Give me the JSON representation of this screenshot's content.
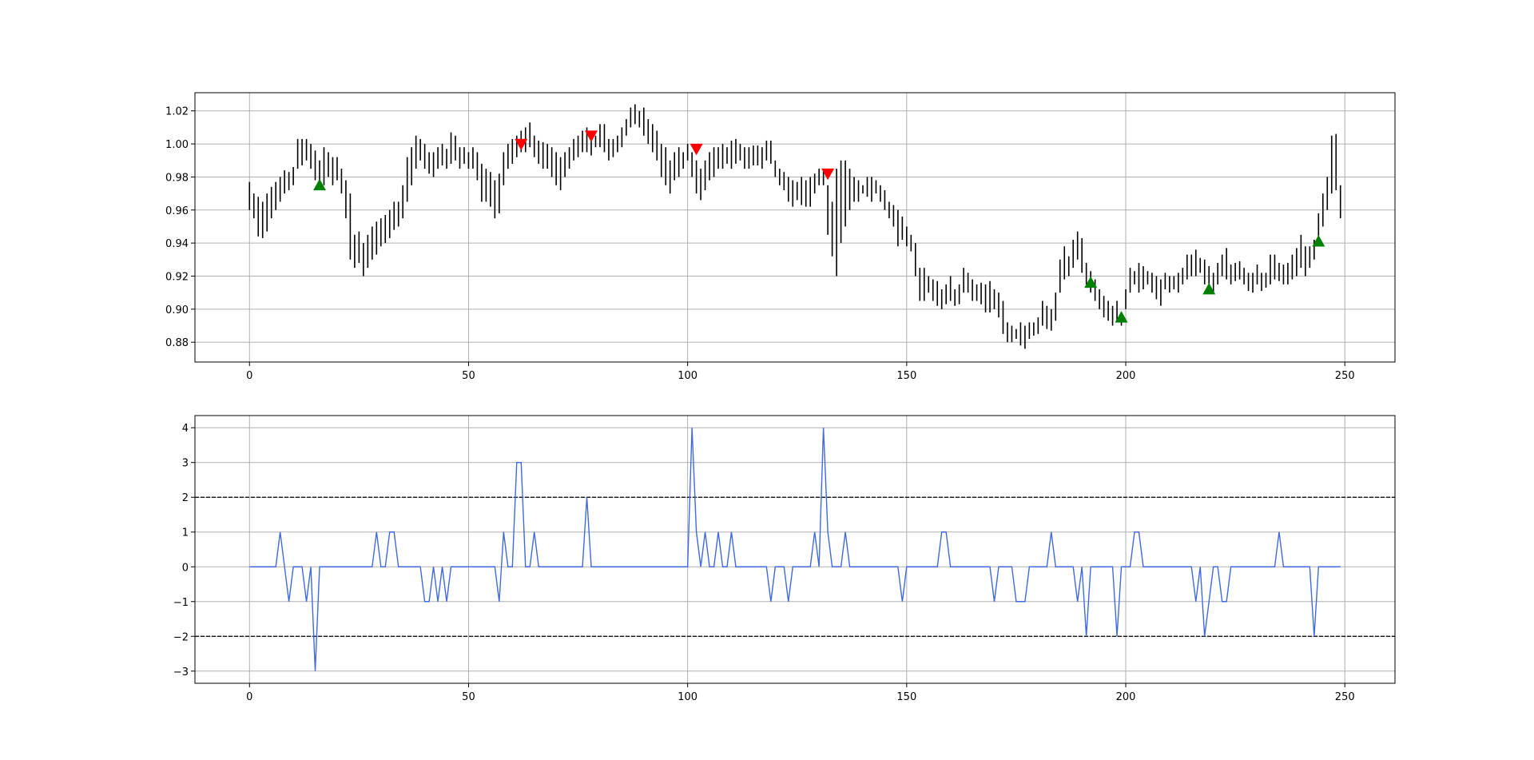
{
  "chart_data": [
    {
      "type": "range",
      "color": "#000000",
      "grid": true,
      "xlim": [
        -12.45,
        261.45
      ],
      "xticks": [
        0,
        50,
        100,
        150,
        200,
        250
      ],
      "ylim": [
        0.868,
        1.031
      ],
      "yticks": [
        0.88,
        {
          "value": 0.9,
          "label": "0.90"
        },
        0.92,
        0.94,
        0.96,
        0.98,
        {
          "value": 1,
          "label": "1.00"
        },
        1.02
      ],
      "low": [
        0.96,
        0.955,
        0.944,
        0.943,
        0.947,
        0.955,
        0.96,
        0.965,
        0.97,
        0.972,
        0.975,
        0.985,
        0.987,
        0.99,
        0.985,
        0.978,
        0.972,
        0.975,
        0.98,
        0.975,
        0.978,
        0.97,
        0.955,
        0.93,
        0.925,
        0.928,
        0.92,
        0.925,
        0.93,
        0.933,
        0.938,
        0.94,
        0.943,
        0.948,
        0.95,
        0.955,
        0.965,
        0.975,
        0.985,
        0.99,
        0.985,
        0.982,
        0.98,
        0.985,
        0.987,
        0.985,
        0.988,
        0.99,
        0.985,
        0.988,
        0.985,
        0.985,
        0.978,
        0.965,
        0.965,
        0.962,
        0.955,
        0.958,
        0.975,
        0.985,
        0.988,
        0.992,
        0.995,
        0.995,
        0.998,
        0.992,
        0.988,
        0.985,
        0.985,
        0.98,
        0.975,
        0.972,
        0.98,
        0.985,
        0.99,
        0.992,
        0.995,
        0.995,
        0.993,
        0.998,
        0.998,
        0.995,
        0.99,
        0.992,
        0.995,
        0.998,
        1.005,
        1.01,
        1.012,
        1.01,
        1.005,
        1.0,
        0.995,
        0.99,
        0.98,
        0.975,
        0.97,
        0.978,
        0.98,
        0.985,
        0.99,
        0.98,
        0.97,
        0.966,
        0.972,
        0.978,
        0.98,
        0.985,
        0.985,
        0.988,
        0.985,
        0.988,
        0.99,
        0.985,
        0.985,
        0.987,
        0.987,
        0.985,
        0.99,
        0.988,
        0.98,
        0.975,
        0.972,
        0.965,
        0.962,
        0.966,
        0.963,
        0.962,
        0.962,
        0.97,
        0.975,
        0.975,
        0.945,
        0.932,
        0.92,
        0.94,
        0.95,
        0.96,
        0.965,
        0.965,
        0.97,
        0.968,
        0.965,
        0.97,
        0.965,
        0.96,
        0.955,
        0.95,
        0.938,
        0.942,
        0.938,
        0.935,
        0.92,
        0.905,
        0.905,
        0.91,
        0.905,
        0.902,
        0.9,
        0.903,
        0.905,
        0.902,
        0.903,
        0.91,
        0.91,
        0.905,
        0.905,
        0.903,
        0.898,
        0.898,
        0.9,
        0.895,
        0.885,
        0.88,
        0.88,
        0.882,
        0.878,
        0.876,
        0.882,
        0.884,
        0.885,
        0.89,
        0.888,
        0.887,
        0.893,
        0.91,
        0.918,
        0.92,
        0.925,
        0.93,
        0.922,
        0.915,
        0.91,
        0.905,
        0.9,
        0.895,
        0.893,
        0.89,
        0.892,
        0.89,
        0.9,
        0.91,
        0.915,
        0.91,
        0.912,
        0.915,
        0.91,
        0.906,
        0.902,
        0.912,
        0.91,
        0.912,
        0.91,
        0.915,
        0.918,
        0.92,
        0.92,
        0.922,
        0.915,
        0.913,
        0.91,
        0.915,
        0.92,
        0.918,
        0.915,
        0.917,
        0.918,
        0.915,
        0.911,
        0.91,
        0.915,
        0.911,
        0.913,
        0.915,
        0.918,
        0.917,
        0.915,
        0.915,
        0.918,
        0.92,
        0.925,
        0.92,
        0.925,
        0.93,
        0.94,
        0.95,
        0.96,
        0.97,
        0.972,
        0.955
      ],
      "high": [
        0.977,
        0.97,
        0.968,
        0.965,
        0.97,
        0.974,
        0.977,
        0.98,
        0.984,
        0.983,
        0.986,
        1.003,
        1.003,
        1.003,
        1.0,
        0.996,
        0.99,
        0.998,
        0.995,
        0.992,
        0.992,
        0.985,
        0.978,
        0.97,
        0.945,
        0.947,
        0.94,
        0.945,
        0.95,
        0.953,
        0.955,
        0.957,
        0.96,
        0.965,
        0.965,
        0.975,
        0.992,
        0.998,
        1.005,
        1.003,
        1.0,
        0.995,
        0.995,
        0.998,
        1.0,
        0.997,
        1.007,
        1.005,
        0.998,
        0.998,
        0.995,
        0.998,
        0.995,
        0.988,
        0.985,
        0.983,
        0.978,
        0.982,
        0.995,
        1.0,
        1.003,
        1.005,
        1.008,
        1.01,
        1.013,
        1.005,
        1.002,
        1.001,
        1.0,
        0.998,
        0.995,
        0.992,
        0.995,
        0.998,
        1.003,
        1.005,
        1.008,
        1.01,
        1.005,
        1.005,
        1.012,
        1.012,
        1.003,
        1.003,
        1.005,
        1.01,
        1.015,
        1.022,
        1.024,
        1.02,
        1.022,
        1.015,
        1.012,
        1.008,
        1.0,
        0.998,
        0.99,
        0.995,
        0.998,
        0.995,
        1.0,
        0.995,
        0.99,
        0.985,
        0.99,
        0.995,
        0.998,
        0.998,
        1.0,
        0.998,
        1.002,
        1.003,
        1.0,
        0.998,
        0.998,
        0.999,
        0.999,
        0.998,
        1.002,
        1.002,
        0.99,
        0.985,
        0.983,
        0.98,
        0.978,
        0.977,
        0.98,
        0.978,
        0.98,
        0.982,
        0.985,
        0.985,
        0.975,
        0.965,
        0.985,
        0.99,
        0.99,
        0.985,
        0.98,
        0.978,
        0.975,
        0.98,
        0.98,
        0.978,
        0.975,
        0.972,
        0.965,
        0.963,
        0.96,
        0.956,
        0.95,
        0.945,
        0.94,
        0.925,
        0.925,
        0.92,
        0.918,
        0.917,
        0.912,
        0.915,
        0.92,
        0.912,
        0.915,
        0.925,
        0.922,
        0.918,
        0.915,
        0.916,
        0.915,
        0.917,
        0.912,
        0.91,
        0.905,
        0.892,
        0.89,
        0.888,
        0.892,
        0.89,
        0.892,
        0.892,
        0.895,
        0.905,
        0.902,
        0.9,
        0.91,
        0.93,
        0.938,
        0.932,
        0.942,
        0.947,
        0.943,
        0.928,
        0.923,
        0.918,
        0.912,
        0.908,
        0.905,
        0.902,
        0.905,
        0.898,
        0.912,
        0.925,
        0.923,
        0.928,
        0.926,
        0.923,
        0.922,
        0.92,
        0.918,
        0.922,
        0.92,
        0.92,
        0.922,
        0.925,
        0.933,
        0.933,
        0.936,
        0.931,
        0.93,
        0.926,
        0.922,
        0.928,
        0.933,
        0.937,
        0.927,
        0.928,
        0.929,
        0.925,
        0.922,
        0.922,
        0.927,
        0.922,
        0.922,
        0.933,
        0.933,
        0.928,
        0.927,
        0.928,
        0.933,
        0.937,
        0.945,
        0.938,
        0.938,
        0.942,
        0.958,
        0.97,
        0.98,
        1.005,
        1.006,
        0.975
      ],
      "markers": [
        {
          "marker": "up",
          "color": "#008000",
          "x": [
            16,
            192,
            199,
            219,
            244
          ],
          "y": [
            0.975,
            0.916,
            0.895,
            0.912,
            0.941
          ]
        },
        {
          "marker": "down",
          "color": "#ff0000",
          "x": [
            62,
            78,
            102,
            132
          ],
          "y": [
            1.0,
            1.005,
            0.997,
            0.982
          ]
        }
      ]
    },
    {
      "type": "line",
      "color": "#4169e1",
      "grid": true,
      "xlim": [
        -12.45,
        261.45
      ],
      "xticks": [
        0,
        50,
        100,
        150,
        200,
        250
      ],
      "ylim": [
        -3.35,
        4.35
      ],
      "yticks": [
        {
          "value": -3,
          "label": "−3"
        },
        {
          "value": -2,
          "label": "−2"
        },
        {
          "value": -1,
          "label": "−1"
        },
        0,
        1,
        2,
        3,
        4
      ],
      "hlines": [
        2,
        -2
      ],
      "hline_color": "#000000",
      "values": [
        0,
        0,
        0,
        0,
        0,
        0,
        0,
        1,
        0,
        -1,
        0,
        0,
        0,
        -1,
        0,
        -3,
        0,
        0,
        0,
        0,
        0,
        0,
        0,
        0,
        0,
        0,
        0,
        0,
        0,
        1,
        0,
        0,
        1,
        1,
        0,
        0,
        0,
        0,
        0,
        0,
        -1,
        -1,
        0,
        -1,
        0,
        -1,
        0,
        0,
        0,
        0,
        0,
        0,
        0,
        0,
        0,
        0,
        0,
        -1,
        1,
        0,
        0,
        3,
        3,
        0,
        0,
        1,
        0,
        0,
        0,
        0,
        0,
        0,
        0,
        0,
        0,
        0,
        0,
        2,
        0,
        0,
        0,
        0,
        0,
        0,
        0,
        0,
        0,
        0,
        0,
        0,
        0,
        0,
        0,
        0,
        0,
        0,
        0,
        0,
        0,
        0,
        0,
        4,
        1,
        0,
        1,
        0,
        0,
        1,
        0,
        0,
        1,
        0,
        0,
        0,
        0,
        0,
        0,
        0,
        0,
        -1,
        0,
        0,
        0,
        -1,
        0,
        0,
        0,
        0,
        0,
        1,
        0,
        4,
        1,
        0,
        0,
        0,
        1,
        0,
        0,
        0,
        0,
        0,
        0,
        0,
        0,
        0,
        0,
        0,
        0,
        -1,
        0,
        0,
        0,
        0,
        0,
        0,
        0,
        0,
        1,
        1,
        0,
        0,
        0,
        0,
        0,
        0,
        0,
        0,
        0,
        0,
        -1,
        0,
        0,
        0,
        0,
        -1,
        -1,
        -1,
        0,
        0,
        0,
        0,
        0,
        1,
        0,
        0,
        0,
        0,
        0,
        -1,
        0,
        -2,
        0,
        0,
        0,
        0,
        0,
        0,
        -2,
        0,
        0,
        0,
        1,
        1,
        0,
        0,
        0,
        0,
        0,
        0,
        0,
        0,
        0,
        0,
        0,
        0,
        -1,
        0,
        -2,
        -1,
        0,
        0,
        -1,
        -1,
        0,
        0,
        0,
        0,
        0,
        0,
        0,
        0,
        0,
        0,
        0,
        1,
        0,
        0,
        0,
        0,
        0,
        0,
        0,
        -2,
        0,
        0,
        0,
        0,
        0,
        0
      ]
    }
  ]
}
